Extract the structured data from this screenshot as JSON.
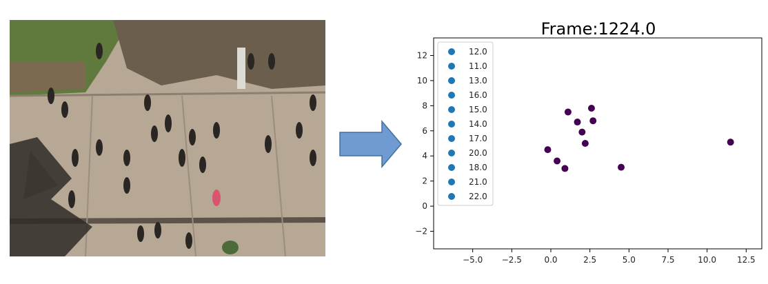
{
  "photo": {
    "caption": "Overhead view of a crowded plaza with pedestrians walking",
    "colors": {
      "pavement": "#b7a895",
      "grass": "#5f7a3c",
      "shadow": "#2f2b27"
    }
  },
  "arrow": {
    "color": "#6f9bd2",
    "stroke": "#41719c"
  },
  "chart_data": {
    "type": "scatter",
    "title": "Frame:1224.0",
    "xlabel": "",
    "ylabel": "",
    "xlim": [
      -7.5,
      13.5
    ],
    "ylim": [
      -3.4,
      13.4
    ],
    "xticks": [
      -5.0,
      -2.5,
      0.0,
      2.5,
      5.0,
      7.5,
      10.0,
      12.5
    ],
    "xtick_labels": [
      "−5.0",
      "−2.5",
      "0.0",
      "2.5",
      "5.0",
      "7.5",
      "10.0",
      "12.5"
    ],
    "yticks": [
      -2,
      0,
      2,
      4,
      6,
      8,
      10,
      12
    ],
    "ytick_labels": [
      "−2",
      "0",
      "2",
      "4",
      "6",
      "8",
      "10",
      "12"
    ],
    "grid": false,
    "legend_position": "upper-left",
    "legend": [
      "12.0",
      "11.0",
      "13.0",
      "16.0",
      "15.0",
      "14.0",
      "17.0",
      "20.0",
      "18.0",
      "21.0",
      "22.0"
    ],
    "legend_color": "#1f77b4",
    "point_color": "#440154",
    "points": [
      {
        "x": 1.1,
        "y": 7.5
      },
      {
        "x": 2.6,
        "y": 7.8
      },
      {
        "x": 1.7,
        "y": 6.7
      },
      {
        "x": 2.7,
        "y": 6.8
      },
      {
        "x": 2.0,
        "y": 5.9
      },
      {
        "x": 2.2,
        "y": 5.0
      },
      {
        "x": -0.2,
        "y": 4.5
      },
      {
        "x": 0.4,
        "y": 3.6
      },
      {
        "x": 0.9,
        "y": 3.0
      },
      {
        "x": 4.5,
        "y": 3.1
      },
      {
        "x": 11.5,
        "y": 5.1
      }
    ]
  }
}
